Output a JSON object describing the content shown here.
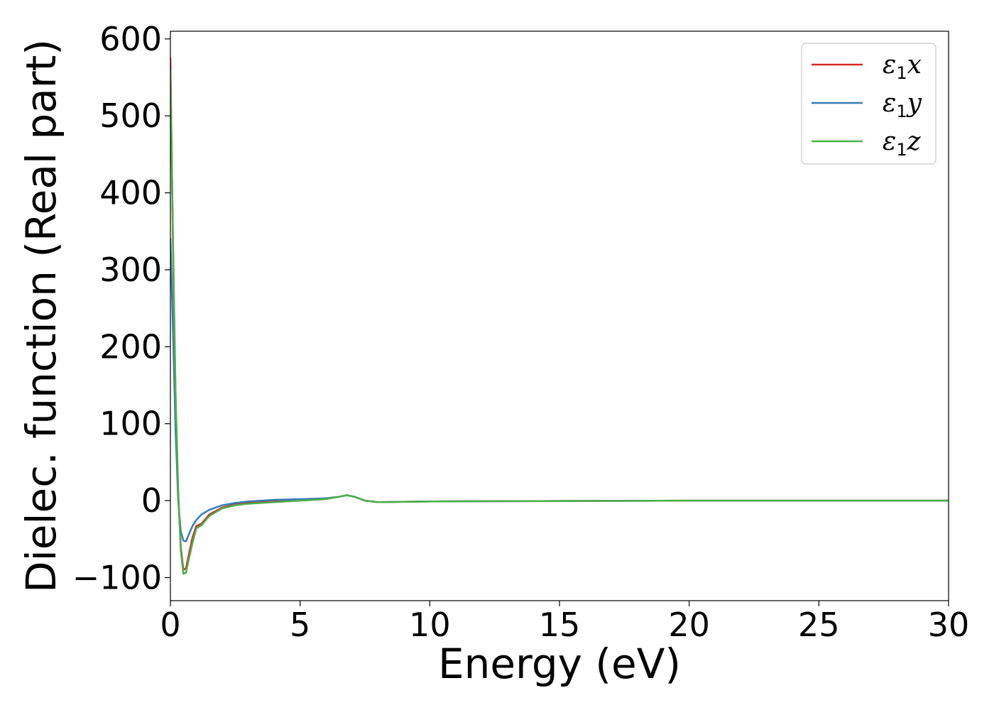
{
  "chart_data": {
    "type": "line",
    "xlabel": "Energy (eV)",
    "ylabel": "Dielec. function (Real part)",
    "xlim": [
      0,
      30
    ],
    "ylim": [
      -130,
      610
    ],
    "xticks": [
      0,
      5,
      10,
      15,
      20,
      25,
      30
    ],
    "xtick_labels": [
      "0",
      "5",
      "10",
      "15",
      "20",
      "25",
      "30"
    ],
    "yticks": [
      -100,
      0,
      100,
      200,
      300,
      400,
      500,
      600
    ],
    "ytick_labels": [
      "−100",
      "0",
      "100",
      "200",
      "300",
      "400",
      "500",
      "600"
    ],
    "grid": false,
    "legend_position": "top-right",
    "series": [
      {
        "name": "ε₁x",
        "color": "#d62728",
        "points": [
          [
            0,
            575
          ],
          [
            0.1,
            330
          ],
          [
            0.2,
            130
          ],
          [
            0.3,
            10
          ],
          [
            0.4,
            -60
          ],
          [
            0.5,
            -90
          ],
          [
            0.6,
            -88
          ],
          [
            0.7,
            -72
          ],
          [
            0.85,
            -48
          ],
          [
            1.0,
            -33
          ],
          [
            1.2,
            -30
          ],
          [
            1.5,
            -18
          ],
          [
            2.0,
            -9
          ],
          [
            2.5,
            -5
          ],
          [
            3.0,
            -3
          ],
          [
            4.0,
            -1
          ],
          [
            5.0,
            1
          ],
          [
            6.0,
            3
          ],
          [
            6.5,
            5
          ],
          [
            6.8,
            7
          ],
          [
            7.1,
            5
          ],
          [
            7.5,
            0
          ],
          [
            8.0,
            -2
          ],
          [
            9.0,
            -1.5
          ],
          [
            10,
            -1
          ],
          [
            15,
            -0.5
          ],
          [
            20,
            0
          ],
          [
            25,
            0
          ],
          [
            30,
            0
          ]
        ]
      },
      {
        "name": "ε₁y",
        "color": "#377eb8",
        "points": [
          [
            0,
            340
          ],
          [
            0.1,
            220
          ],
          [
            0.2,
            90
          ],
          [
            0.3,
            0
          ],
          [
            0.4,
            -40
          ],
          [
            0.5,
            -52
          ],
          [
            0.6,
            -53
          ],
          [
            0.7,
            -45
          ],
          [
            0.85,
            -33
          ],
          [
            1.0,
            -25
          ],
          [
            1.2,
            -18
          ],
          [
            1.5,
            -12
          ],
          [
            2.0,
            -6
          ],
          [
            2.5,
            -3
          ],
          [
            3.0,
            -1
          ],
          [
            4.0,
            1
          ],
          [
            5.0,
            2
          ],
          [
            6.0,
            3
          ],
          [
            6.5,
            5
          ],
          [
            6.8,
            7
          ],
          [
            7.1,
            5
          ],
          [
            7.5,
            0
          ],
          [
            8.0,
            -2
          ],
          [
            9.0,
            -1.5
          ],
          [
            10,
            -1
          ],
          [
            15,
            -0.5
          ],
          [
            20,
            0
          ],
          [
            25,
            0
          ],
          [
            30,
            0
          ]
        ]
      },
      {
        "name": "ε₁z",
        "color": "#4daf4a",
        "points": [
          [
            0,
            560
          ],
          [
            0.1,
            340
          ],
          [
            0.2,
            140
          ],
          [
            0.3,
            15
          ],
          [
            0.4,
            -65
          ],
          [
            0.5,
            -95
          ],
          [
            0.6,
            -94
          ],
          [
            0.7,
            -78
          ],
          [
            0.85,
            -55
          ],
          [
            1.0,
            -36
          ],
          [
            1.2,
            -32
          ],
          [
            1.5,
            -20
          ],
          [
            2.0,
            -10
          ],
          [
            2.5,
            -6
          ],
          [
            3.0,
            -4
          ],
          [
            4.0,
            -2
          ],
          [
            5.0,
            0
          ],
          [
            6.0,
            2
          ],
          [
            6.5,
            5
          ],
          [
            6.8,
            7
          ],
          [
            7.1,
            5
          ],
          [
            7.5,
            0
          ],
          [
            8.0,
            -2
          ],
          [
            9.0,
            -1.5
          ],
          [
            10,
            -1
          ],
          [
            15,
            -0.5
          ],
          [
            20,
            0
          ],
          [
            25,
            0
          ],
          [
            30,
            0
          ]
        ]
      }
    ]
  }
}
